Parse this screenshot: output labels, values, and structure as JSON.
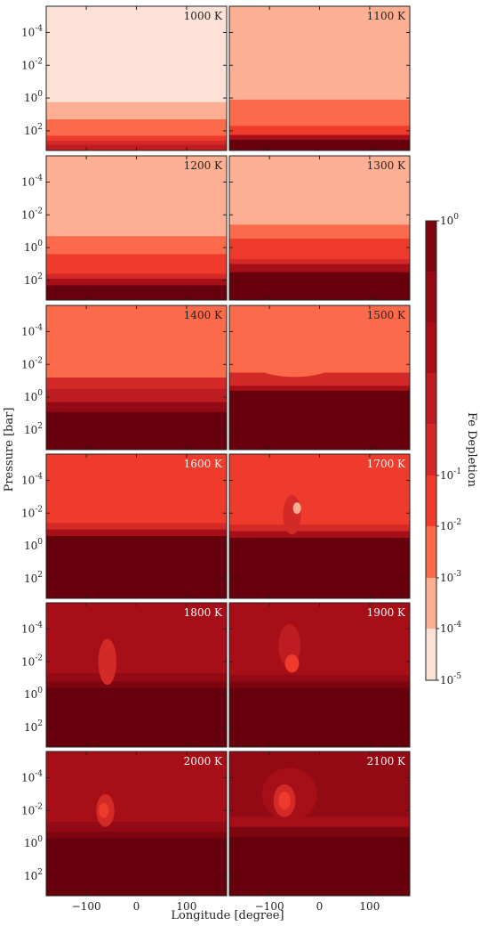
{
  "chart_data": {
    "type": "heatmap",
    "xlabel": "Longitude [degree]",
    "ylabel": "Pressure [bar]",
    "colorbar_label": "Fe Depletion",
    "x_ticks": [
      "-100",
      "0",
      "100"
    ],
    "x_tick_values": [
      -100,
      0,
      100
    ],
    "xlim": [
      -180,
      180
    ],
    "y_ticks": [
      {
        "base": "10",
        "exp": "-4"
      },
      {
        "base": "10",
        "exp": "-2"
      },
      {
        "base": "10",
        "exp": "0"
      },
      {
        "base": "10",
        "exp": "2"
      }
    ],
    "y_tick_exponents": [
      -4,
      -2,
      0,
      2
    ],
    "ylim_log10": [
      -5.6,
      3.2
    ],
    "y_inverted": true,
    "colorbar_ticks": [
      {
        "base": "10",
        "exp": "0"
      },
      {
        "base": "10",
        "exp": "-1"
      },
      {
        "base": "10",
        "exp": "-2"
      },
      {
        "base": "10",
        "exp": "-3"
      },
      {
        "base": "10",
        "exp": "-4"
      },
      {
        "base": "10",
        "exp": "-5"
      }
    ],
    "colorbar_tick_exponents": [
      0,
      -1,
      -2,
      -3,
      -4,
      -5
    ],
    "colorbar_level_exponents": [
      -5,
      -4,
      -3,
      -2,
      -1,
      -0.6,
      -0.45,
      -0.3,
      -0.15,
      0
    ],
    "colormap": [
      "#fde1d6",
      "#fcaf92",
      "#fb6a4a",
      "#ef3b2c",
      "#d42a27",
      "#bd1c20",
      "#a70f18",
      "#940a14",
      "#7d0510",
      "#67000d"
    ],
    "panels": [
      {
        "label": "1000 K",
        "label_color": "#222222",
        "bands": [
          {
            "top": -5.6,
            "level": 0
          },
          {
            "top": 0.25,
            "level": 1
          },
          {
            "top": 1.3,
            "level": 2
          },
          {
            "top": 2.3,
            "level": 3
          },
          {
            "top": 2.6,
            "level": 4
          },
          {
            "top": 2.85,
            "level": 5
          }
        ]
      },
      {
        "label": "1100 K",
        "label_color": "#222222",
        "bands": [
          {
            "top": -5.6,
            "level": 1
          },
          {
            "top": 0.1,
            "level": 2
          },
          {
            "top": 1.7,
            "level": 3
          },
          {
            "top": 2.25,
            "level": 6
          },
          {
            "top": 2.55,
            "level": 9
          }
        ]
      },
      {
        "label": "1200 K",
        "label_color": "#222222",
        "bands": [
          {
            "top": -5.6,
            "level": 1
          },
          {
            "top": -0.7,
            "level": 2
          },
          {
            "top": 0.4,
            "level": 3
          },
          {
            "top": 1.6,
            "level": 4
          },
          {
            "top": 1.9,
            "level": 6
          },
          {
            "top": 2.3,
            "level": 9
          }
        ]
      },
      {
        "label": "1300 K",
        "label_color": "#222222",
        "bands": [
          {
            "top": -5.6,
            "level": 1
          },
          {
            "top": -1.4,
            "level": 2
          },
          {
            "top": -0.55,
            "level": 3
          },
          {
            "top": 0.7,
            "level": 4
          },
          {
            "top": 1.0,
            "level": 6
          },
          {
            "top": 1.5,
            "level": 9
          }
        ]
      },
      {
        "label": "1400 K",
        "label_color": "#222222",
        "bands": [
          {
            "top": -5.6,
            "level": 2
          },
          {
            "top": -1.2,
            "level": 4
          },
          {
            "top": -0.5,
            "level": 5
          },
          {
            "top": 0.3,
            "level": 7
          },
          {
            "top": 0.9,
            "level": 9
          }
        ]
      },
      {
        "label": "1500 K",
        "label_color": "#222222",
        "bands": [
          {
            "top": -5.6,
            "level": 2
          },
          {
            "top": -1.5,
            "level": 4
          },
          {
            "top": -0.7,
            "level": 6
          },
          {
            "top": -0.4,
            "level": 9
          }
        ]
      },
      {
        "label": "1600 K",
        "label_color": "#ffffff",
        "bands": [
          {
            "top": -5.6,
            "level": 3
          },
          {
            "top": -1.4,
            "level": 4
          },
          {
            "top": -1.0,
            "level": 6
          },
          {
            "top": -0.6,
            "level": 9
          }
        ]
      },
      {
        "label": "1700 K",
        "label_color": "#ffffff",
        "bands": [
          {
            "top": -5.6,
            "level": 3
          },
          {
            "top": -1.3,
            "level": 4
          },
          {
            "top": -0.9,
            "level": 6
          },
          {
            "top": -0.5,
            "level": 9
          }
        ]
      },
      {
        "label": "1800 K",
        "label_color": "#ffffff",
        "bands": [
          {
            "top": -5.6,
            "level": 6
          },
          {
            "top": -1.3,
            "level": 7
          },
          {
            "top": -0.8,
            "level": 8
          },
          {
            "top": -0.4,
            "level": 9
          }
        ]
      },
      {
        "label": "1900 K",
        "label_color": "#ffffff",
        "bands": [
          {
            "top": -5.6,
            "level": 6
          },
          {
            "top": -1.2,
            "level": 7
          },
          {
            "top": -0.8,
            "level": 8
          },
          {
            "top": -0.4,
            "level": 9
          }
        ]
      },
      {
        "label": "2000 K",
        "label_color": "#ffffff",
        "bands": [
          {
            "top": -5.6,
            "level": 6
          },
          {
            "top": -1.3,
            "level": 7
          },
          {
            "top": -0.7,
            "level": 8
          },
          {
            "top": -0.3,
            "level": 9
          }
        ]
      },
      {
        "label": "2100 K",
        "label_color": "#ffffff",
        "bands": [
          {
            "top": -5.6,
            "level": 7
          },
          {
            "top": -1.6,
            "level": 6
          },
          {
            "top": -1.0,
            "level": 8
          },
          {
            "top": -0.4,
            "level": 9
          }
        ]
      }
    ],
    "features": [
      {
        "panel": 5,
        "type": "dip",
        "lon": -50,
        "width": 60,
        "from_level": 2,
        "to_level": 4,
        "depth": 0.35
      },
      {
        "panel": 7,
        "type": "blob",
        "lon": -55,
        "logp": -1.9,
        "rlon": 18,
        "rlogp": 1.2,
        "level": 4
      },
      {
        "panel": 7,
        "type": "blob",
        "lon": -45,
        "logp": -2.3,
        "rlon": 8,
        "rlogp": 0.35,
        "level": 1
      },
      {
        "panel": 8,
        "type": "blob",
        "lon": -58,
        "logp": -2.0,
        "rlon": 18,
        "rlogp": 1.4,
        "level": 4
      },
      {
        "panel": 9,
        "type": "blob",
        "lon": -60,
        "logp": -3.0,
        "rlon": 22,
        "rlogp": 1.3,
        "level": 5
      },
      {
        "panel": 9,
        "type": "blob",
        "lon": -55,
        "logp": -1.9,
        "rlon": 14,
        "rlogp": 0.55,
        "level": 3
      },
      {
        "panel": 10,
        "type": "blob",
        "lon": -62,
        "logp": -2.0,
        "rlon": 18,
        "rlogp": 1.0,
        "level": 4
      },
      {
        "panel": 10,
        "type": "blob",
        "lon": -65,
        "logp": -2.0,
        "rlon": 10,
        "rlogp": 0.45,
        "level": 3
      },
      {
        "panel": 11,
        "type": "blob",
        "lon": -60,
        "logp": -3.0,
        "rlon": 55,
        "rlogp": 1.6,
        "level": 6
      },
      {
        "panel": 11,
        "type": "blob",
        "lon": -70,
        "logp": -2.6,
        "rlon": 22,
        "rlogp": 1.0,
        "level": 4
      },
      {
        "panel": 11,
        "type": "blob",
        "lon": -70,
        "logp": -2.6,
        "rlon": 12,
        "rlogp": 0.55,
        "level": 3
      }
    ]
  }
}
